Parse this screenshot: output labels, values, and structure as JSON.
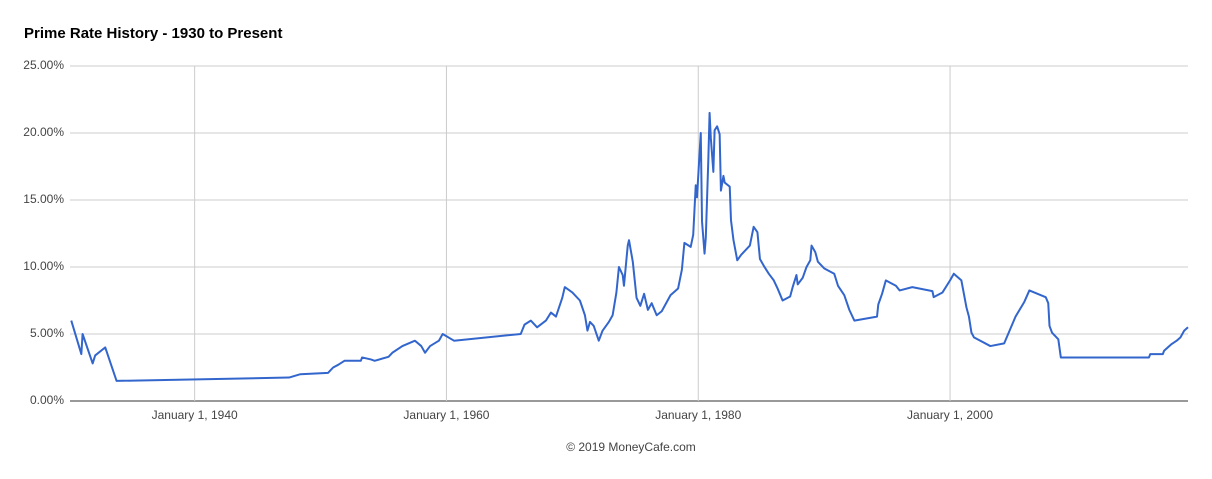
{
  "chart_data": {
    "type": "line",
    "title": "Prime Rate History - 1930 to Present",
    "source": "©  2019 MoneyCafe.com",
    "color": "#3366cc",
    "grid": true,
    "x": [
      1930.2,
      1931.0,
      1931.1,
      1931.9,
      1932.1,
      1932.9,
      1933.8,
      1947.5,
      1948.4,
      1950.6,
      1951.0,
      1951.4,
      1951.9,
      1953.2,
      1953.3,
      1954.0,
      1954.3,
      1955.4,
      1955.7,
      1956.5,
      1957.5,
      1958.0,
      1958.3,
      1958.7,
      1959.4,
      1959.7,
      1960.6,
      1965.9,
      1966.2,
      1966.7,
      1967.2,
      1967.9,
      1968.3,
      1968.7,
      1969.2,
      1969.4,
      1970.0,
      1970.6,
      1971.0,
      1971.2,
      1971.4,
      1971.7,
      1972.1,
      1972.4,
      1972.9,
      1973.2,
      1973.5,
      1973.7,
      1974.0,
      1974.1,
      1974.4,
      1974.5,
      1974.8,
      1975.1,
      1975.4,
      1975.7,
      1976.0,
      1976.3,
      1976.7,
      1977.1,
      1977.8,
      1978.4,
      1978.7,
      1978.9,
      1979.4,
      1979.6,
      1979.8,
      1979.9,
      1980.2,
      1980.3,
      1980.5,
      1980.6,
      1980.8,
      1980.9,
      1981.0,
      1981.2,
      1981.3,
      1981.5,
      1981.7,
      1981.8,
      1982.0,
      1982.1,
      1982.5,
      1982.6,
      1982.8,
      1983.1,
      1983.4,
      1984.1,
      1984.4,
      1984.7,
      1984.9,
      1985.2,
      1985.6,
      1986.0,
      1986.3,
      1986.7,
      1987.3,
      1987.5,
      1987.8,
      1987.9,
      1988.3,
      1988.6,
      1988.9,
      1989.0,
      1989.3,
      1989.5,
      1990.0,
      1990.8,
      1991.1,
      1991.6,
      1992.0,
      1992.4,
      1994.2,
      1994.3,
      1994.6,
      1994.9,
      1995.7,
      1996.0,
      1997.0,
      1998.6,
      1998.7,
      1999.4,
      2000.0,
      2000.3,
      2000.9,
      2001.3,
      2001.5,
      2001.7,
      2001.9,
      2003.2,
      2004.3,
      2005.2,
      2005.9,
      2006.3,
      2007.6,
      2007.8,
      2007.9,
      2008.1,
      2008.6,
      2008.8,
      2015.8,
      2015.9,
      2016.9,
      2017.0,
      2017.3,
      2017.6,
      2018.0,
      2018.3,
      2018.6,
      2018.9
    ],
    "values": [
      6.0,
      3.5,
      5.0,
      2.8,
      3.4,
      4.0,
      1.5,
      1.75,
      2.0,
      2.1,
      2.5,
      2.7,
      3.0,
      3.0,
      3.25,
      3.1,
      3.0,
      3.3,
      3.6,
      4.1,
      4.5,
      4.1,
      3.6,
      4.1,
      4.5,
      5.0,
      4.5,
      5.0,
      5.7,
      6.0,
      5.5,
      6.0,
      6.6,
      6.3,
      7.7,
      8.5,
      8.1,
      7.5,
      6.4,
      5.25,
      5.9,
      5.6,
      4.5,
      5.25,
      5.9,
      6.4,
      8.1,
      10.0,
      9.4,
      8.6,
      11.6,
      12.0,
      10.4,
      7.7,
      7.1,
      8.0,
      6.8,
      7.3,
      6.4,
      6.7,
      7.9,
      8.4,
      9.8,
      11.8,
      11.5,
      12.4,
      16.1,
      15.2,
      20.0,
      13.4,
      11.0,
      12.2,
      18.0,
      21.5,
      19.6,
      17.1,
      20.2,
      20.5,
      19.9,
      15.7,
      16.8,
      16.3,
      16.0,
      13.5,
      12.0,
      10.5,
      10.9,
      11.6,
      13.0,
      12.6,
      10.6,
      10.1,
      9.5,
      9.0,
      8.4,
      7.5,
      7.8,
      8.5,
      9.4,
      8.7,
      9.2,
      10.0,
      10.5,
      11.6,
      11.1,
      10.4,
      9.9,
      9.5,
      8.6,
      7.9,
      6.8,
      6.0,
      6.3,
      7.2,
      8.0,
      9.0,
      8.6,
      8.25,
      8.5,
      8.2,
      7.75,
      8.1,
      9.0,
      9.5,
      9.0,
      7.0,
      6.3,
      5.1,
      4.75,
      4.1,
      4.3,
      6.3,
      7.4,
      8.25,
      7.75,
      7.3,
      5.6,
      5.1,
      4.6,
      3.25,
      3.25,
      3.5,
      3.5,
      3.75,
      4.0,
      4.25,
      4.5,
      4.75,
      5.25,
      5.5
    ],
    "xlim": [
      1930.1,
      2018.9
    ],
    "xticks": [
      {
        "value": 1940,
        "label": "January 1, 1940"
      },
      {
        "value": 1960,
        "label": "January 1, 1960"
      },
      {
        "value": 1980,
        "label": "January 1, 1980"
      },
      {
        "value": 2000,
        "label": "January 1, 2000"
      }
    ],
    "ylim": [
      0,
      25
    ],
    "yticks": [
      {
        "value": 0,
        "label": "0.00%"
      },
      {
        "value": 5,
        "label": "5.00%"
      },
      {
        "value": 10,
        "label": "10.00%"
      },
      {
        "value": 15,
        "label": "15.00%"
      },
      {
        "value": 20,
        "label": "20.00%"
      },
      {
        "value": 25,
        "label": "25.00%"
      }
    ]
  }
}
